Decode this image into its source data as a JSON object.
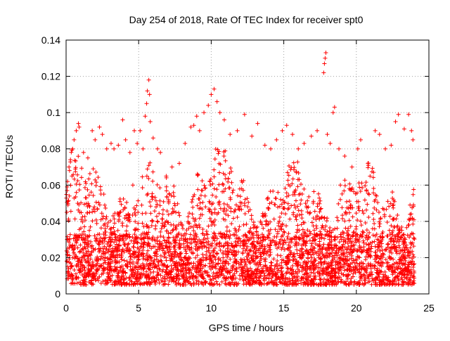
{
  "chart_data": {
    "type": "scatter",
    "title": "Day 254 of 2018, Rate Of TEC Index for receiver spt0",
    "xlabel": "GPS time / hours",
    "ylabel": "ROTI / TECUs",
    "xlim": [
      0,
      25
    ],
    "ylim": [
      0,
      0.14
    ],
    "xticks": [
      0,
      5,
      10,
      15,
      20,
      25
    ],
    "yticks": [
      0,
      0.02,
      0.04,
      0.06,
      0.08,
      0.1,
      0.12,
      0.14
    ],
    "xtick_labels": [
      "0",
      "5",
      "10",
      "15",
      "20",
      "25"
    ],
    "ytick_labels": [
      "0",
      "0.02",
      "0.04",
      "0.06",
      "0.08",
      "0.1",
      "0.12",
      "0.14"
    ],
    "grid": true,
    "marker": "plus",
    "color": "#ff0000",
    "series": [
      {
        "name": "spt0",
        "points": [
          [
            0.05,
            0.045
          ],
          [
            0.1,
            0.062
          ],
          [
            0.2,
            0.07
          ],
          [
            0.3,
            0.074
          ],
          [
            0.45,
            0.08
          ],
          [
            0.55,
            0.085
          ],
          [
            0.7,
            0.09
          ],
          [
            0.85,
            0.094
          ],
          [
            0.9,
            0.092
          ],
          [
            1.2,
            0.078
          ],
          [
            1.5,
            0.075
          ],
          [
            1.8,
            0.09
          ],
          [
            2.0,
            0.085
          ],
          [
            2.3,
            0.092
          ],
          [
            2.5,
            0.088
          ],
          [
            2.8,
            0.08
          ],
          [
            3.1,
            0.083
          ],
          [
            3.3,
            0.08
          ],
          [
            3.6,
            0.082
          ],
          [
            3.9,
            0.096
          ],
          [
            4.1,
            0.085
          ],
          [
            4.4,
            0.078
          ],
          [
            4.7,
            0.09
          ],
          [
            4.9,
            0.083
          ],
          [
            5.1,
            0.09
          ],
          [
            5.3,
            0.08
          ],
          [
            5.45,
            0.098
          ],
          [
            5.55,
            0.105
          ],
          [
            5.6,
            0.112
          ],
          [
            5.7,
            0.118
          ],
          [
            5.75,
            0.11
          ],
          [
            5.8,
            0.095
          ],
          [
            6.0,
            0.086
          ],
          [
            6.3,
            0.08
          ],
          [
            6.5,
            0.078
          ],
          [
            6.9,
            0.065
          ],
          [
            7.3,
            0.07
          ],
          [
            7.8,
            0.072
          ],
          [
            8.2,
            0.083
          ],
          [
            8.6,
            0.092
          ],
          [
            8.8,
            0.093
          ],
          [
            9.0,
            0.098
          ],
          [
            9.2,
            0.09
          ],
          [
            9.5,
            0.1
          ],
          [
            9.8,
            0.104
          ],
          [
            10.0,
            0.11
          ],
          [
            10.2,
            0.113
          ],
          [
            10.4,
            0.106
          ],
          [
            10.6,
            0.1
          ],
          [
            10.9,
            0.096
          ],
          [
            11.3,
            0.088
          ],
          [
            11.8,
            0.09
          ],
          [
            12.3,
            0.099
          ],
          [
            12.8,
            0.087
          ],
          [
            13.2,
            0.094
          ],
          [
            13.7,
            0.082
          ],
          [
            14.1,
            0.08
          ],
          [
            14.5,
            0.085
          ],
          [
            14.9,
            0.09
          ],
          [
            15.2,
            0.093
          ],
          [
            15.6,
            0.088
          ],
          [
            16.0,
            0.08
          ],
          [
            16.4,
            0.083
          ],
          [
            16.9,
            0.087
          ],
          [
            17.3,
            0.09
          ],
          [
            17.75,
            0.122
          ],
          [
            17.8,
            0.127
          ],
          [
            17.85,
            0.13
          ],
          [
            17.9,
            0.133
          ],
          [
            18.0,
            0.088
          ],
          [
            18.2,
            0.083
          ],
          [
            18.4,
            0.1
          ],
          [
            18.5,
            0.103
          ],
          [
            18.8,
            0.08
          ],
          [
            19.2,
            0.076
          ],
          [
            19.7,
            0.07
          ],
          [
            20.1,
            0.08
          ],
          [
            20.3,
            0.085
          ],
          [
            20.8,
            0.072
          ],
          [
            21.3,
            0.09
          ],
          [
            21.6,
            0.088
          ],
          [
            22.0,
            0.08
          ],
          [
            22.4,
            0.082
          ],
          [
            22.7,
            0.095
          ],
          [
            22.9,
            0.099
          ],
          [
            23.3,
            0.091
          ],
          [
            23.6,
            0.099
          ],
          [
            23.8,
            0.09
          ],
          [
            23.9,
            0.085
          ],
          [
            0.1,
            0.03
          ],
          [
            0.4,
            0.015
          ],
          [
            0.8,
            0.05
          ],
          [
            1.1,
            0.02
          ],
          [
            1.6,
            0.035
          ],
          [
            2.1,
            0.012
          ],
          [
            2.6,
            0.055
          ],
          [
            3.2,
            0.025
          ],
          [
            3.7,
            0.045
          ],
          [
            4.2,
            0.018
          ],
          [
            4.6,
            0.06
          ],
          [
            5.2,
            0.03
          ],
          [
            5.7,
            0.01
          ],
          [
            6.2,
            0.048
          ],
          [
            6.8,
            0.022
          ],
          [
            7.4,
            0.038
          ],
          [
            8.1,
            0.016
          ],
          [
            8.7,
            0.052
          ],
          [
            9.3,
            0.028
          ],
          [
            9.9,
            0.062
          ],
          [
            10.5,
            0.019
          ],
          [
            11.0,
            0.044
          ],
          [
            11.6,
            0.026
          ],
          [
            12.1,
            0.058
          ],
          [
            12.7,
            0.014
          ],
          [
            13.4,
            0.04
          ],
          [
            14.0,
            0.021
          ],
          [
            14.6,
            0.056
          ],
          [
            15.3,
            0.012
          ],
          [
            15.9,
            0.034
          ],
          [
            16.5,
            0.05
          ],
          [
            17.1,
            0.018
          ],
          [
            17.6,
            0.042
          ],
          [
            18.3,
            0.027
          ],
          [
            18.9,
            0.06
          ],
          [
            19.5,
            0.013
          ],
          [
            20.2,
            0.046
          ],
          [
            20.7,
            0.023
          ],
          [
            21.4,
            0.054
          ],
          [
            22.1,
            0.017
          ],
          [
            22.6,
            0.037
          ],
          [
            23.2,
            0.011
          ],
          [
            23.7,
            0.049
          ]
        ]
      }
    ],
    "density_band": {
      "description": "dense cloud of ROTI points spanning the full day",
      "x_range": [
        0,
        24
      ],
      "y_floor": 0.005
    }
  }
}
